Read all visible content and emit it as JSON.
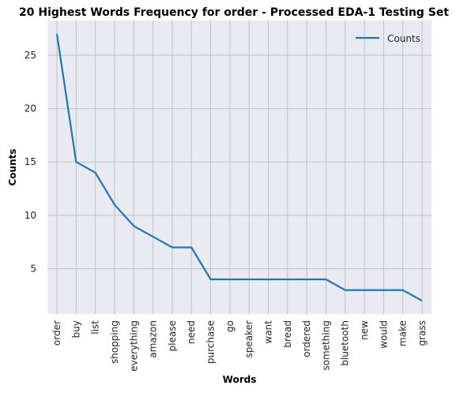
{
  "chart_data": {
    "type": "line",
    "title": "20 Highest Words Frequency for order - Processed EDA-1 Testing Set",
    "xlabel": "Words",
    "ylabel": "Counts",
    "categories": [
      "order",
      "buy",
      "list",
      "shopping",
      "everything",
      "amazon",
      "please",
      "need",
      "purchase",
      "go",
      "speaker",
      "want",
      "bread",
      "ordered",
      "something",
      "bluetooth",
      "new",
      "would",
      "make",
      "grass"
    ],
    "series": [
      {
        "name": "Counts",
        "values": [
          27,
          15,
          14,
          11,
          9,
          8,
          7,
          7,
          4,
          4,
          4,
          4,
          4,
          4,
          4,
          3,
          3,
          3,
          3,
          2
        ]
      }
    ],
    "ylim": [
      0.75,
      28.25
    ],
    "yticks": [
      5,
      10,
      15,
      20,
      25
    ],
    "grid": true,
    "legend_position": "top-right",
    "colors": {
      "line": "#1f77b4",
      "plot_bg": "#eaeaf2",
      "grid": "#c0c0c0"
    }
  }
}
